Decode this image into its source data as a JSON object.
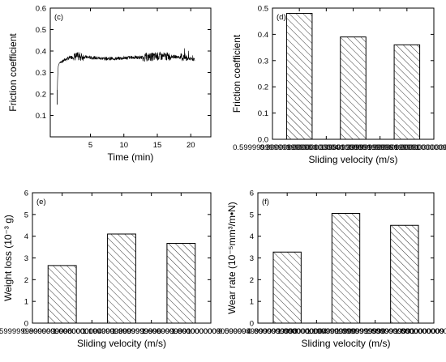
{
  "chart_data": [
    {
      "panel": "(c)",
      "type": "line",
      "xlabel": "Time (min)",
      "ylabel": "Friction coefficient",
      "xlim": [
        -1,
        23
      ],
      "ylim": [
        0.0,
        0.6
      ],
      "xticks": [
        5,
        10,
        15,
        20
      ],
      "yticks": [
        0.1,
        0.2,
        0.3,
        0.4,
        0.5,
        0.6
      ],
      "series": [
        {
          "x": [
            0.0,
            0.05,
            0.1,
            0.15,
            0.2,
            0.3,
            0.5,
            0.8,
            1.2,
            2.0,
            3.0,
            5.0,
            7.0,
            9.0,
            11.0,
            13.0,
            15.0,
            17.0,
            19.0,
            20.6
          ],
          "y": [
            0.15,
            0.22,
            0.28,
            0.31,
            0.33,
            0.34,
            0.35,
            0.35,
            0.36,
            0.37,
            0.375,
            0.37,
            0.365,
            0.365,
            0.37,
            0.37,
            0.375,
            0.375,
            0.37,
            0.36
          ]
        }
      ]
    },
    {
      "panel": "(d)",
      "type": "bar",
      "xlabel": "Sliding velocity (m/s)",
      "ylabel": "Friction coefficient",
      "xlim": [
        0.6,
        1.8
      ],
      "ylim": [
        0.0,
        0.5
      ],
      "xticks": [
        0.6,
        0.8,
        1.0,
        1.2,
        1.4,
        1.6,
        1.8
      ],
      "yticks": [
        0.0,
        0.1,
        0.2,
        0.3,
        0.4,
        0.5
      ],
      "x": [
        0.8,
        1.2,
        1.6
      ],
      "values": [
        0.48,
        0.39,
        0.36
      ]
    },
    {
      "panel": "(e)",
      "type": "bar",
      "xlabel": "Sliding velocity (m/s)",
      "ylabel": "Weight loss (10⁻³ g)",
      "xlim": [
        0.6,
        1.8
      ],
      "ylim": [
        0,
        6
      ],
      "xticks": [
        0.6,
        0.8,
        1.0,
        1.2,
        1.4,
        1.6,
        1.8
      ],
      "yticks": [
        0,
        1,
        2,
        3,
        4,
        5,
        6
      ],
      "x": [
        0.8,
        1.2,
        1.6
      ],
      "values": [
        2.65,
        4.1,
        3.67
      ]
    },
    {
      "panel": "(f)",
      "type": "bar",
      "xlabel": "Sliding velocity (m/s)",
      "ylabel": "Wear rate (10⁻⁵mm³/m•N)",
      "xlim": [
        0.6,
        1.8
      ],
      "ylim": [
        0,
        6
      ],
      "xticks": [
        0.6,
        0.8,
        1.0,
        1.2,
        1.4,
        1.6,
        1.8
      ],
      "yticks": [
        0,
        1,
        2,
        3,
        4,
        5,
        6
      ],
      "x": [
        0.8,
        1.2,
        1.6
      ],
      "values": [
        3.27,
        5.05,
        4.5
      ]
    }
  ],
  "colors": {
    "axis": "#000000",
    "bar_fill": "#ffffff",
    "hatch": "#000000",
    "line": "#000000"
  }
}
